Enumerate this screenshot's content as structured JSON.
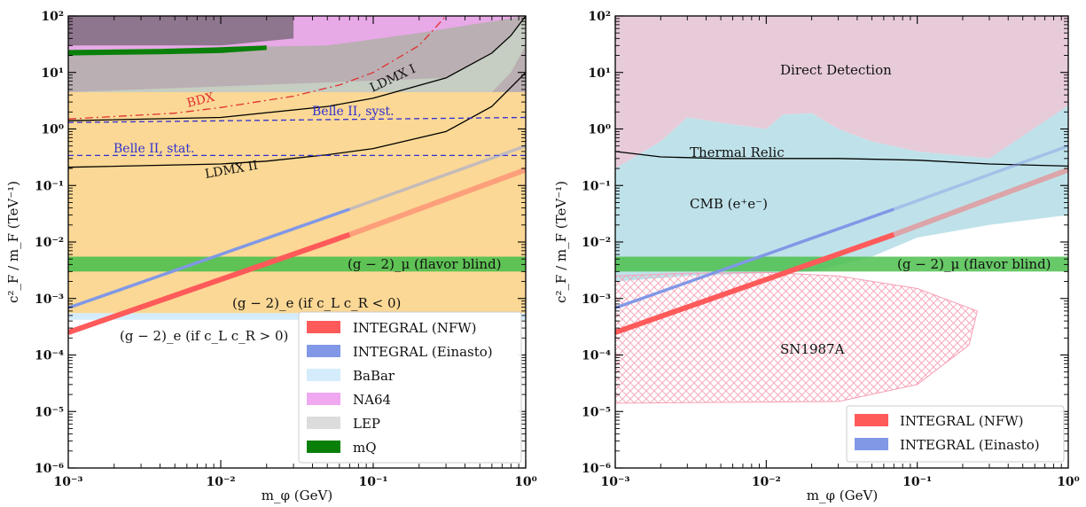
{
  "chart_data": [
    {
      "type": "line",
      "panel": "left",
      "xlabel": "m_φ (GeV)",
      "ylabel": "c²_F / m_F (TeV⁻¹)",
      "x_scale": "log",
      "y_scale": "log",
      "xlim": [
        0.001,
        1
      ],
      "ylim": [
        1e-06,
        100
      ],
      "x_ticks": [
        "10⁻³",
        "10⁻²",
        "10⁻¹",
        "10⁰"
      ],
      "y_ticks": [
        "10⁻⁶",
        "10⁻⁵",
        "10⁻⁴",
        "10⁻³",
        "10⁻²",
        "10⁻¹",
        "10⁰",
        "10¹",
        "10²"
      ],
      "legend_position": "bottom-right",
      "series": [
        {
          "name": "INTEGRAL (NFW)",
          "color": "#ff5a5a",
          "kind": "line",
          "points": [
            [
              0.001,
              0.00025
            ],
            [
              0.07,
              0.0135
            ],
            [
              1,
              0.19
            ]
          ]
        },
        {
          "name": "INTEGRAL (Einasto)",
          "color": "#8098e6",
          "kind": "line",
          "points": [
            [
              0.001,
              0.00068
            ],
            [
              0.07,
              0.038
            ],
            [
              1,
              0.5
            ]
          ]
        },
        {
          "name": "BaBar",
          "color": "#d4ecfb",
          "kind": "band",
          "lower": [
            [
              0.001,
              0.00055
            ],
            [
              1,
              0.00055
            ]
          ],
          "upper": [
            [
              0.001,
              100
            ],
            [
              1,
              100
            ]
          ]
        },
        {
          "name": "NA64",
          "color": "#f0a8f0",
          "kind": "band",
          "lower": [
            [
              0.001,
              25
            ],
            [
              0.05,
              30
            ],
            [
              0.2,
              50
            ],
            [
              1,
              100
            ]
          ],
          "upper": [
            [
              0.001,
              100
            ],
            [
              1,
              100
            ]
          ]
        },
        {
          "name": "LEP",
          "color": "#dcdcdc",
          "kind": "band",
          "lower": [
            [
              0.001,
              4.5
            ],
            [
              1,
              4.5
            ]
          ],
          "upper": [
            [
              0.001,
              100
            ],
            [
              1,
              100
            ]
          ]
        },
        {
          "name": "mQ",
          "color": "#0a800a",
          "kind": "band",
          "lower": [
            [
              0.001,
              20
            ],
            [
              0.004,
              21
            ],
            [
              0.01,
              22
            ],
            [
              0.02,
              25
            ]
          ],
          "upper": [
            [
              0.001,
              25
            ],
            [
              0.004,
              26
            ],
            [
              0.01,
              28
            ],
            [
              0.02,
              30
            ]
          ]
        }
      ],
      "other_curves": [
        {
          "label": "BDX",
          "color": "#e03030",
          "style": "dash-dot",
          "points": [
            [
              0.001,
              1.5
            ],
            [
              0.005,
              1.9
            ],
            [
              0.01,
              2.4
            ],
            [
              0.03,
              3.8
            ],
            [
              0.06,
              6
            ],
            [
              0.1,
              10
            ],
            [
              0.2,
              30
            ],
            [
              0.3,
              100
            ]
          ]
        },
        {
          "label": "LDMX I",
          "color": "#000000",
          "style": "solid",
          "points": [
            [
              0.001,
              1.4
            ],
            [
              0.01,
              1.6
            ],
            [
              0.05,
              2.5
            ],
            [
              0.1,
              3.5
            ],
            [
              0.3,
              8
            ],
            [
              0.6,
              22
            ],
            [
              0.8,
              45
            ],
            [
              1,
              100
            ]
          ]
        },
        {
          "label": "LDMX II",
          "color": "#000000",
          "style": "solid",
          "points": [
            [
              0.001,
              0.21
            ],
            [
              0.01,
              0.24
            ],
            [
              0.02,
              0.27
            ],
            [
              0.05,
              0.35
            ],
            [
              0.1,
              0.45
            ],
            [
              0.3,
              0.9
            ],
            [
              0.6,
              2.5
            ],
            [
              1,
              10
            ]
          ]
        },
        {
          "label": "Belle II, syst.",
          "color": "#3030d0",
          "style": "dashed",
          "points": [
            [
              0.001,
              1.3
            ],
            [
              1,
              1.6
            ]
          ]
        },
        {
          "label": "Belle II, stat.",
          "color": "#3030d0",
          "style": "dashed",
          "points": [
            [
              0.001,
              0.34
            ],
            [
              1,
              0.34
            ]
          ]
        }
      ],
      "bands_other": [
        {
          "label": "(g−2)_μ (flavor blind)",
          "color": "#4cc04c",
          "y_range": [
            0.003,
            0.0055
          ]
        },
        {
          "label": "(g−2)_e (if c_L c_R < 0)",
          "color": "#fbd48a",
          "y_range": [
            0.00055,
            100
          ]
        }
      ],
      "annotations": [
        "BDX",
        "LDMX I",
        "LDMX II",
        "Belle II, syst.",
        "Belle II, stat.",
        "(g − 2)_μ (flavor blind)",
        "(g − 2)_e (if c_L c_R < 0)",
        "(g − 2)_e (if c_L c_R > 0)"
      ]
    },
    {
      "type": "line",
      "panel": "right",
      "xlabel": "m_φ (GeV)",
      "ylabel": "c²_F / m_F (TeV⁻¹)",
      "x_scale": "log",
      "y_scale": "log",
      "xlim": [
        0.001,
        1
      ],
      "ylim": [
        1e-06,
        100
      ],
      "x_ticks": [
        "10⁻³",
        "10⁻²",
        "10⁻¹",
        "10⁰"
      ],
      "y_ticks": [
        "10⁻⁶",
        "10⁻⁵",
        "10⁻⁴",
        "10⁻³",
        "10⁻²",
        "10⁻¹",
        "10⁰",
        "10¹",
        "10²"
      ],
      "legend_position": "bottom-right",
      "series": [
        {
          "name": "INTEGRAL (NFW)",
          "color": "#ff5a5a",
          "kind": "line",
          "points": [
            [
              0.001,
              0.00025
            ],
            [
              0.07,
              0.0135
            ],
            [
              1,
              0.19
            ]
          ]
        },
        {
          "name": "INTEGRAL (Einasto)",
          "color": "#8098e6",
          "kind": "line",
          "points": [
            [
              0.001,
              0.00068
            ],
            [
              0.07,
              0.038
            ],
            [
              1,
              0.5
            ]
          ]
        }
      ],
      "regions": [
        {
          "label": "Direct Detection",
          "color": "#e7cbd9",
          "lower": [
            [
              0.001,
              0.2
            ],
            [
              0.002,
              0.6
            ],
            [
              0.003,
              1.6
            ],
            [
              0.006,
              1.2
            ],
            [
              0.01,
              1.0
            ],
            [
              0.013,
              1.8
            ],
            [
              0.02,
              1.9
            ],
            [
              0.03,
              1.0
            ],
            [
              0.05,
              0.6
            ],
            [
              0.1,
              0.4
            ],
            [
              0.3,
              0.3
            ],
            [
              1,
              0.2
            ]
          ]
        },
        {
          "label": "CMB (e⁺e⁻)",
          "color": "#bfe2ea",
          "lower": [
            [
              0.001,
              0.002
            ],
            [
              0.003,
              0.0025
            ],
            [
              0.02,
              0.003
            ],
            [
              0.05,
              0.0055
            ],
            [
              0.1,
              0.012
            ],
            [
              0.3,
              0.02
            ],
            [
              1,
              0.03
            ]
          ],
          "upper": [
            [
              0.001,
              0.2
            ],
            [
              0.002,
              0.6
            ],
            [
              0.003,
              1.6
            ],
            [
              0.006,
              1.2
            ],
            [
              0.01,
              1.0
            ],
            [
              0.013,
              1.8
            ],
            [
              0.02,
              1.9
            ],
            [
              0.03,
              1.0
            ],
            [
              0.05,
              0.6
            ],
            [
              0.1,
              0.4
            ],
            [
              0.3,
              0.3
            ],
            [
              1,
              2.6
            ]
          ]
        }
      ],
      "other_curves": [
        {
          "label": "Thermal Relic",
          "color": "#000000",
          "style": "solid",
          "points": [
            [
              0.001,
              0.4
            ],
            [
              0.002,
              0.32
            ],
            [
              0.005,
              0.3
            ],
            [
              0.03,
              0.3
            ],
            [
              0.1,
              0.28
            ],
            [
              0.3,
              0.24
            ],
            [
              1,
              0.22
            ]
          ]
        }
      ],
      "bands_other": [
        {
          "label": "(g−2)_μ (flavor blind)",
          "color": "#4cc04c",
          "y_range": [
            0.003,
            0.0055
          ]
        }
      ],
      "hatched_region": {
        "label": "SN1987A",
        "color": "#f5a0b5",
        "outline": [
          [
            0.001,
            0.0025
          ],
          [
            0.003,
            0.0028
          ],
          [
            0.01,
            0.0029
          ],
          [
            0.03,
            0.0025
          ],
          [
            0.1,
            0.0015
          ],
          [
            0.25,
            0.0006
          ],
          [
            0.22,
            0.00015
          ],
          [
            0.1,
            3e-05
          ],
          [
            0.03,
            1.5e-05
          ],
          [
            0.001,
            1.4e-05
          ]
        ]
      },
      "annotations": [
        "Direct Detection",
        "Thermal Relic",
        "CMB (e⁺e⁻)",
        "(g − 2)_μ (flavor blind)",
        "SN1987A"
      ]
    }
  ]
}
